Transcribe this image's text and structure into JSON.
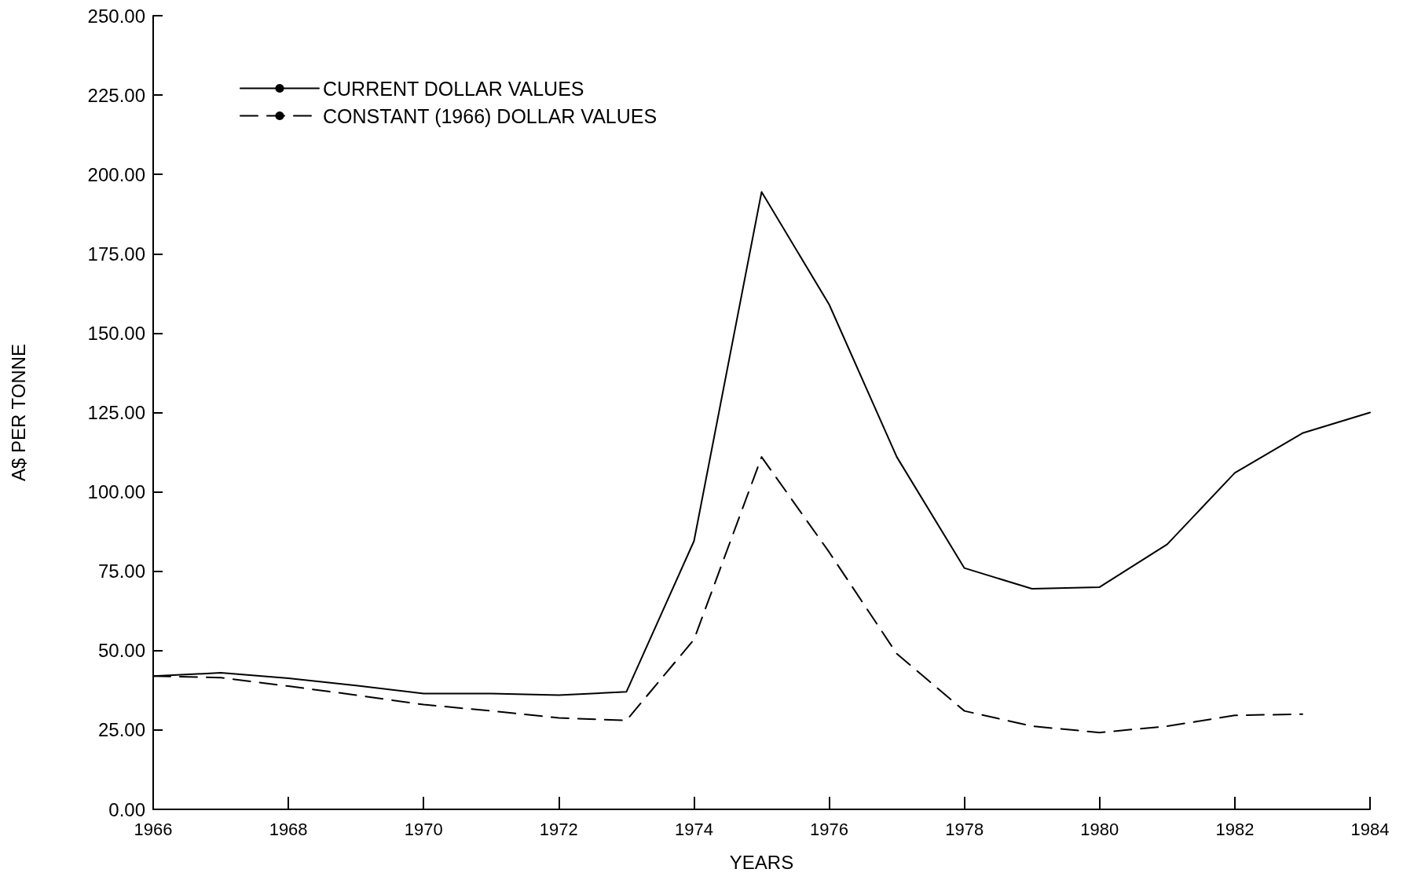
{
  "chart_data": {
    "type": "line",
    "xlabel": "YEARS",
    "ylabel": "A$ PER TONNE",
    "x": [
      1966,
      1967,
      1968,
      1969,
      1970,
      1971,
      1972,
      1973,
      1974,
      1975,
      1976,
      1977,
      1978,
      1979,
      1980,
      1981,
      1982,
      1983,
      1984
    ],
    "series": [
      {
        "name": "CURRENT DOLLAR VALUES",
        "color": "#000000",
        "line_style": "solid",
        "values": [
          42,
          43,
          41.3,
          39,
          36.5,
          36.5,
          36,
          37,
          84.5,
          194.5,
          159,
          111,
          76,
          69.5,
          70,
          83.5,
          106,
          118.5,
          125
        ]
      },
      {
        "name": "CONSTANT (1966) DOLLAR VALUES",
        "color": "#000000",
        "line_style": "dashed",
        "values": [
          42,
          41.5,
          38.8,
          36,
          33,
          31,
          28.8,
          28,
          53.5,
          111,
          81,
          49,
          31,
          26.2,
          24.2,
          26.2,
          29.6,
          30,
          null
        ]
      }
    ],
    "xlim": [
      1966,
      1984
    ],
    "xticks": [
      1966,
      1968,
      1970,
      1972,
      1974,
      1976,
      1978,
      1980,
      1982,
      1984
    ],
    "ylim": [
      0,
      250
    ],
    "yticks": [
      {
        "value": 0,
        "label": "0.00"
      },
      {
        "value": 25,
        "label": "25.00"
      },
      {
        "value": 50,
        "label": "50.00"
      },
      {
        "value": 75,
        "label": "75.00"
      },
      {
        "value": 100,
        "label": "100.00"
      },
      {
        "value": 125,
        "label": "125.00"
      },
      {
        "value": 150,
        "label": "150.00"
      },
      {
        "value": 175,
        "label": "175.00"
      },
      {
        "value": 200,
        "label": "200.00"
      },
      {
        "value": 225,
        "label": "225.00"
      },
      {
        "value": 250,
        "label": "250.00"
      }
    ],
    "grid": false,
    "legend": "top left",
    "marker": "none"
  }
}
